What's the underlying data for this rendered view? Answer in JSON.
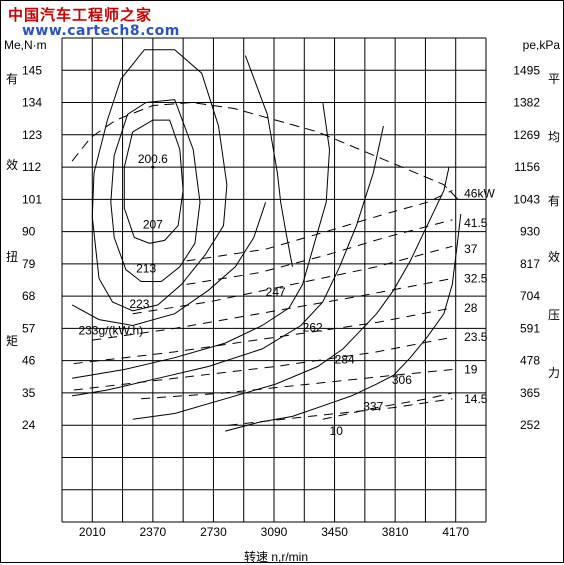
{
  "watermark": {
    "cn": "中国汽车工程师之家",
    "url": "www.cartech8.com"
  },
  "chart_data": {
    "type": "line",
    "title": "",
    "xlabel": "转速  n,r/min",
    "ylabel_left": "Me,N·m",
    "ylabel_right": "pe,kPa",
    "ylabel_left_chars": [
      "有",
      "效",
      "扭",
      "矩"
    ],
    "ylabel_right_chars": [
      "平",
      "均",
      "有",
      "效",
      "压",
      "力"
    ],
    "x_ticks": [
      "2010",
      "2370",
      "2730",
      "3090",
      "3450",
      "3810",
      "4170"
    ],
    "y_left_ticks": [
      "145",
      "134",
      "123",
      "112",
      "101",
      "90",
      "79",
      "68",
      "57",
      "46",
      "35",
      "24"
    ],
    "y_right_ticks": [
      "1495",
      "1382",
      "1269",
      "1156",
      "1043",
      "930",
      "817",
      "704",
      "591",
      "478",
      "365",
      "252"
    ],
    "xlim": [
      1830,
      4350
    ],
    "ylim": [
      -9,
      156
    ],
    "grid": true,
    "center_point": {
      "x": 2370,
      "y": 112,
      "label": "200.6"
    },
    "bsfc_contours": [
      {
        "label": "207",
        "label_at": [
          2370,
          91
        ],
        "points": [
          [
            2370,
            128
          ],
          [
            2470,
            128
          ],
          [
            2530,
            118
          ],
          [
            2550,
            104
          ],
          [
            2520,
            92
          ],
          [
            2440,
            87
          ],
          [
            2350,
            86
          ],
          [
            2260,
            88
          ],
          [
            2200,
            98
          ],
          [
            2200,
            112
          ],
          [
            2250,
            124
          ],
          [
            2370,
            128
          ]
        ]
      },
      {
        "label": "213",
        "label_at": [
          2330,
          76
        ],
        "points": [
          [
            2330,
            134
          ],
          [
            2500,
            135
          ],
          [
            2610,
            118
          ],
          [
            2650,
            100
          ],
          [
            2620,
            86
          ],
          [
            2530,
            78
          ],
          [
            2420,
            73
          ],
          [
            2300,
            73
          ],
          [
            2210,
            77
          ],
          [
            2140,
            88
          ],
          [
            2120,
            100
          ],
          [
            2140,
            116
          ],
          [
            2220,
            130
          ],
          [
            2330,
            134
          ]
        ]
      },
      {
        "label": "223",
        "label_at": [
          2290,
          64
        ],
        "points": [
          [
            2010,
            95
          ],
          [
            2020,
            110
          ],
          [
            2100,
            128
          ],
          [
            2180,
            142
          ],
          [
            2320,
            152
          ],
          [
            2500,
            152
          ],
          [
            2660,
            144
          ],
          [
            2760,
            126
          ],
          [
            2810,
            106
          ],
          [
            2790,
            92
          ],
          [
            2680,
            82
          ],
          [
            2540,
            72
          ],
          [
            2400,
            65
          ],
          [
            2250,
            63
          ],
          [
            2130,
            66
          ],
          [
            2050,
            74
          ],
          [
            2010,
            95
          ]
        ]
      },
      {
        "label": "233g/(kW.h)",
        "label_at": [
          2120,
          55
        ],
        "points": [
          [
            1890,
            65
          ],
          [
            2050,
            60
          ],
          [
            2250,
            58
          ],
          [
            2500,
            62
          ],
          [
            2700,
            70
          ],
          [
            2860,
            78
          ],
          [
            2970,
            88
          ],
          [
            3040,
            100
          ]
        ]
      },
      {
        "label": "247",
        "label_at": [
          3100,
          68
        ],
        "points": [
          [
            2920,
            150
          ],
          [
            3050,
            130
          ],
          [
            3110,
            110
          ],
          [
            3130,
            100
          ],
          [
            3160,
            90
          ],
          [
            3200,
            78
          ]
        ]
      },
      {
        "label": "262",
        "label_at": [
          3320,
          56
        ],
        "points": [
          [
            3380,
            134
          ],
          [
            3420,
            118
          ],
          [
            3400,
            100
          ],
          [
            3330,
            86
          ],
          [
            3260,
            72
          ],
          [
            3180,
            64
          ],
          [
            3020,
            58
          ],
          [
            2800,
            52
          ],
          [
            2500,
            47
          ],
          [
            2200,
            43
          ],
          [
            1890,
            40
          ]
        ]
      },
      {
        "label": "284",
        "label_at": [
          3510,
          45
        ],
        "points": [
          [
            3740,
            126
          ],
          [
            3680,
            110
          ],
          [
            3580,
            92
          ],
          [
            3480,
            78
          ],
          [
            3380,
            66
          ],
          [
            3250,
            58
          ],
          [
            3020,
            50
          ],
          [
            2700,
            44
          ],
          [
            2400,
            40
          ],
          [
            2100,
            36
          ],
          [
            1890,
            34
          ]
        ]
      },
      {
        "label": "306",
        "label_at": [
          3850,
          38
        ],
        "points": [
          [
            4130,
            112
          ],
          [
            4100,
            104
          ],
          [
            4000,
            92
          ],
          [
            3900,
            80
          ],
          [
            3800,
            70
          ],
          [
            3700,
            62
          ],
          [
            3600,
            56
          ],
          [
            3500,
            50
          ],
          [
            3350,
            44
          ],
          [
            3100,
            38
          ],
          [
            2800,
            33
          ],
          [
            2500,
            28
          ],
          [
            2250,
            26
          ]
        ]
      },
      {
        "label": "337",
        "label_at": [
          3680,
          29
        ],
        "points": [
          [
            4200,
            96
          ],
          [
            4180,
            86
          ],
          [
            4150,
            72
          ],
          [
            4100,
            62
          ],
          [
            4000,
            54
          ],
          [
            3900,
            47
          ],
          [
            3800,
            41
          ],
          [
            3700,
            38
          ],
          [
            3550,
            34
          ],
          [
            3400,
            31
          ],
          [
            3200,
            27
          ],
          [
            3000,
            25
          ],
          [
            2800,
            22
          ]
        ]
      }
    ],
    "power_lines": [
      {
        "label": "46kW",
        "label_at": [
          4220,
          103
        ],
        "points": [
          [
            2570,
            80
          ],
          [
            3040,
            84
          ],
          [
            3400,
            90
          ],
          [
            3750,
            96
          ],
          [
            4000,
            100
          ],
          [
            4150,
            104
          ]
        ]
      },
      {
        "label": "41.5",
        "label_at": [
          4220,
          93
        ],
        "points": [
          [
            2570,
            72
          ],
          [
            3000,
            76
          ],
          [
            3400,
            82
          ],
          [
            3750,
            88
          ],
          [
            4150,
            94
          ]
        ]
      },
      {
        "label": "37",
        "label_at": [
          4220,
          84
        ],
        "points": [
          [
            2250,
            62
          ],
          [
            2700,
            66
          ],
          [
            3200,
            72
          ],
          [
            3700,
            78
          ],
          [
            4150,
            85
          ]
        ]
      },
      {
        "label": "32.5",
        "label_at": [
          4220,
          74
        ],
        "points": [
          [
            2010,
            53
          ],
          [
            2500,
            57
          ],
          [
            3000,
            62
          ],
          [
            3600,
            68
          ],
          [
            4150,
            74
          ]
        ]
      },
      {
        "label": "28",
        "label_at": [
          4220,
          64
        ],
        "points": [
          [
            1900,
            45
          ],
          [
            2500,
            49
          ],
          [
            3100,
            54
          ],
          [
            3700,
            59
          ],
          [
            4150,
            64
          ]
        ]
      },
      {
        "label": "23.5",
        "label_at": [
          4220,
          54
        ],
        "points": [
          [
            1900,
            36
          ],
          [
            2500,
            40
          ],
          [
            3100,
            44
          ],
          [
            3700,
            49
          ],
          [
            4150,
            54
          ]
        ]
      },
      {
        "label": "19",
        "label_at": [
          4220,
          43
        ],
        "points": [
          [
            2300,
            33
          ],
          [
            2800,
            35
          ],
          [
            3300,
            38
          ],
          [
            3800,
            41
          ],
          [
            4150,
            43
          ]
        ]
      },
      {
        "label": "14.5",
        "label_at": [
          4220,
          33
        ],
        "points": [
          [
            2820,
            24
          ],
          [
            3300,
            27
          ],
          [
            3800,
            30
          ],
          [
            4150,
            33
          ]
        ]
      },
      {
        "label": "10",
        "label_at": [
          3420,
          22
        ],
        "points": [
          [
            3380,
            26
          ],
          [
            3700,
            30
          ],
          [
            4000,
            33
          ],
          [
            4150,
            35
          ]
        ]
      }
    ],
    "full_load_curve": {
      "points": [
        [
          1890,
          114
        ],
        [
          2000,
          122
        ],
        [
          2150,
          128
        ],
        [
          2370,
          133
        ],
        [
          2600,
          134
        ],
        [
          2850,
          132
        ],
        [
          3100,
          128
        ],
        [
          3350,
          124
        ],
        [
          3600,
          118
        ],
        [
          3850,
          112
        ],
        [
          4100,
          106
        ],
        [
          4200,
          100
        ]
      ]
    }
  }
}
